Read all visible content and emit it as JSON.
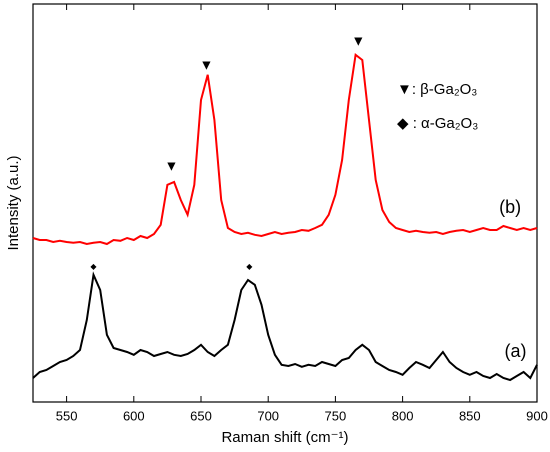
{
  "chart_data": {
    "type": "line",
    "xlabel": "Raman shift (cm⁻¹)",
    "ylabel": "Intensity (a.u.)",
    "xlim": [
      525,
      900
    ],
    "xticks": [
      550,
      600,
      650,
      700,
      750,
      800,
      850,
      900
    ],
    "ylim": [
      0,
      99.5
    ],
    "x": [
      525,
      530,
      535,
      540,
      545,
      550,
      555,
      560,
      565,
      570,
      575,
      580,
      585,
      590,
      595,
      600,
      605,
      610,
      615,
      620,
      625,
      630,
      635,
      640,
      645,
      650,
      655,
      660,
      665,
      670,
      675,
      680,
      685,
      690,
      695,
      700,
      705,
      710,
      715,
      720,
      725,
      730,
      735,
      740,
      745,
      750,
      755,
      760,
      765,
      770,
      775,
      780,
      785,
      790,
      795,
      800,
      805,
      810,
      815,
      820,
      825,
      830,
      835,
      840,
      845,
      850,
      855,
      860,
      865,
      870,
      875,
      880,
      885,
      890,
      895,
      900
    ],
    "series": [
      {
        "name": "(a)",
        "color": "#000000",
        "values": [
          6,
          7.5,
          8,
          9,
          10,
          10.5,
          11.5,
          13,
          20.5,
          31.8,
          28,
          16.8,
          13.5,
          13,
          12.5,
          11.8,
          13,
          12.5,
          11.5,
          12,
          12.5,
          11.8,
          11.5,
          12,
          13,
          14.3,
          12.5,
          11.5,
          13,
          14.3,
          20.5,
          28,
          30.5,
          29.3,
          24.3,
          16.8,
          11.8,
          9.3,
          9,
          9.5,
          8.8,
          9.3,
          9,
          10,
          9.5,
          9,
          10.5,
          11,
          13,
          14.3,
          13,
          10,
          9,
          8,
          7.5,
          6.8,
          8.5,
          10,
          9.3,
          8.5,
          10.5,
          12.5,
          10,
          8.5,
          7.5,
          6.8,
          7.5,
          6.5,
          6,
          7,
          6,
          5.5,
          6.5,
          7.5,
          6,
          9.3
        ]
      },
      {
        "name": "(b)",
        "color": "#ff0000",
        "values": [
          41,
          40.5,
          40.5,
          40,
          40.3,
          40,
          39.8,
          40,
          39.5,
          39.8,
          40,
          39.5,
          40.5,
          40.3,
          41,
          40.5,
          41.5,
          41,
          42,
          44.3,
          54.3,
          55,
          50.5,
          46.8,
          54.3,
          75.5,
          81.8,
          70.5,
          50.5,
          43.5,
          42.5,
          42,
          42.3,
          41.8,
          41.5,
          42,
          42.5,
          42,
          42.3,
          42.5,
          43,
          42.8,
          43.5,
          44.3,
          46.8,
          51.8,
          60.5,
          75.5,
          86.8,
          85.5,
          70.5,
          55.5,
          48,
          45,
          43.5,
          43,
          42.5,
          42.8,
          42.5,
          42.3,
          42.5,
          42,
          42.5,
          42.8,
          43,
          42.5,
          43,
          43.5,
          43,
          43,
          44,
          43.5,
          43,
          43.5,
          43,
          43.5
        ]
      }
    ],
    "series_labels": [
      {
        "text": "(a)",
        "x": 884,
        "y": 12.5
      },
      {
        "text": "(b)",
        "x": 880,
        "y": 48.5
      }
    ],
    "annotations": [
      {
        "text": "◆",
        "x": 570,
        "y": 33.8
      },
      {
        "text": "◆",
        "x": 686,
        "y": 33.8
      },
      {
        "text": "▼",
        "x": 628,
        "y": 58.8
      },
      {
        "text": "▼",
        "x": 654,
        "y": 84
      },
      {
        "text": "▼",
        "x": 767,
        "y": 90
      }
    ],
    "legend": {
      "position": "upper right",
      "entries": [
        "▼: β-Ga₂O₃",
        "◆ : α-Ga₂O₃"
      ]
    }
  }
}
